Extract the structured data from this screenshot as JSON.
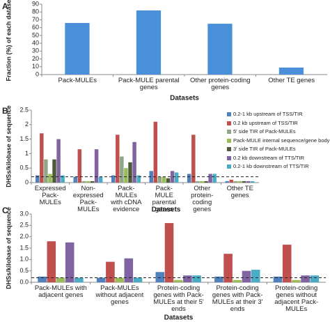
{
  "chart_data": [
    {
      "type": "bar",
      "panel": "A",
      "x_label": "Datasets",
      "y_label": "Fraction (%) of each dataset",
      "categories": [
        "Pack-MULEs",
        "Pack-MULE parental genes",
        "Other protein-coding genes",
        "Other TE genes"
      ],
      "series": [
        {
          "color": "#4a8fd9",
          "values": [
            66,
            82,
            65,
            9
          ]
        }
      ],
      "ylim": [
        0,
        90
      ],
      "yticks": [
        0,
        10,
        20,
        30,
        40,
        50,
        60,
        70,
        80,
        90
      ]
    },
    {
      "type": "bar",
      "panel": "B",
      "x_label": "Datasets",
      "y_label": "DHSs/kilobase of sequence",
      "categories": [
        "Expressed Pack-MULEs",
        "Non-expressed Pack-MULEs",
        "Pack-MULEs with cDNA evidence",
        "Pack-MULE parental genes",
        "Other protein-coding genes",
        "Other TE genes"
      ],
      "series": [
        {
          "name": "0.2-1 kb upstream of TSS/TIR",
          "color": "#4f81bd",
          "values": [
            0.25,
            0.2,
            0.25,
            0.4,
            0.3,
            0.05
          ]
        },
        {
          "name": "0.2 kb upstream of TSS/TIR",
          "color": "#c0504d",
          "values": [
            1.7,
            1.15,
            1.65,
            2.1,
            1.65,
            0.1
          ]
        },
        {
          "name": "5' side TIR of Pack-MULEs",
          "color": "#8fa68a",
          "values": [
            0.8,
            0.05,
            0.9,
            0.2,
            0.05,
            0.05
          ]
        },
        {
          "name": "Pack-MULE internal sequence/gene body",
          "color": "#9bbb59",
          "values": [
            0.3,
            0.05,
            0.5,
            0.2,
            0.05,
            0.05
          ]
        },
        {
          "name": "3' side TIR of Pack-MULEs",
          "color": "#4f5a3a",
          "values": [
            0.8,
            0.05,
            0.7,
            0.15,
            0.05,
            0.05
          ]
        },
        {
          "name": "0.2 kb downstream of TTS/TIR",
          "color": "#8064a2",
          "values": [
            1.5,
            1.15,
            1.4,
            0.4,
            0.3,
            0.05
          ]
        },
        {
          "name": "0.2-1 kb downstream of TTS/TIR",
          "color": "#4bacc6",
          "values": [
            0.25,
            0.2,
            0.25,
            0.35,
            0.3,
            0.05
          ]
        }
      ],
      "reference_line": 0.2,
      "ylim": [
        0,
        2.5
      ],
      "yticks": [
        0,
        0.5,
        1,
        1.5,
        2,
        2.5
      ]
    },
    {
      "type": "bar",
      "panel": "C",
      "x_label": "Datasets",
      "y_label": "DHSs/kilobase of sequence",
      "categories": [
        "Pack-MULEs with adjacent genes",
        "Pack-MULEs without adjacent genes",
        "Protein-coding genes with Pack-MULEs at their 5' ends",
        "Protein-coding genes with Pack-MULEs at their 3' ends",
        "Protein-coding genes without adjacent Pack-MULEs"
      ],
      "series": [
        {
          "color": "#4f81bd",
          "values": [
            0.25,
            0.2,
            0.45,
            0.25,
            0.25
          ]
        },
        {
          "color": "#c0504d",
          "values": [
            1.8,
            0.9,
            2.6,
            1.25,
            1.65
          ]
        },
        {
          "color": "#9bbb59",
          "values": [
            0.2,
            0.2,
            0.1,
            0.1,
            0.1
          ]
        },
        {
          "color": "#8064a2",
          "values": [
            1.75,
            1.05,
            0.3,
            0.5,
            0.3
          ]
        },
        {
          "color": "#4bacc6",
          "values": [
            0.2,
            0.2,
            0.3,
            0.55,
            0.3
          ]
        }
      ],
      "reference_line": 0.2,
      "ylim": [
        0,
        3
      ],
      "yticks": [
        {
          "value": 0,
          "label": "0.0"
        },
        {
          "value": 0.5,
          "label": "0.5"
        },
        {
          "value": 1,
          "label": "1.0"
        },
        {
          "value": 1.5,
          "label": "1.5"
        },
        {
          "value": 2,
          "label": "2.0"
        },
        {
          "value": 2.5,
          "label": "2.5"
        },
        {
          "value": 3,
          "label": "3.0"
        }
      ]
    }
  ]
}
